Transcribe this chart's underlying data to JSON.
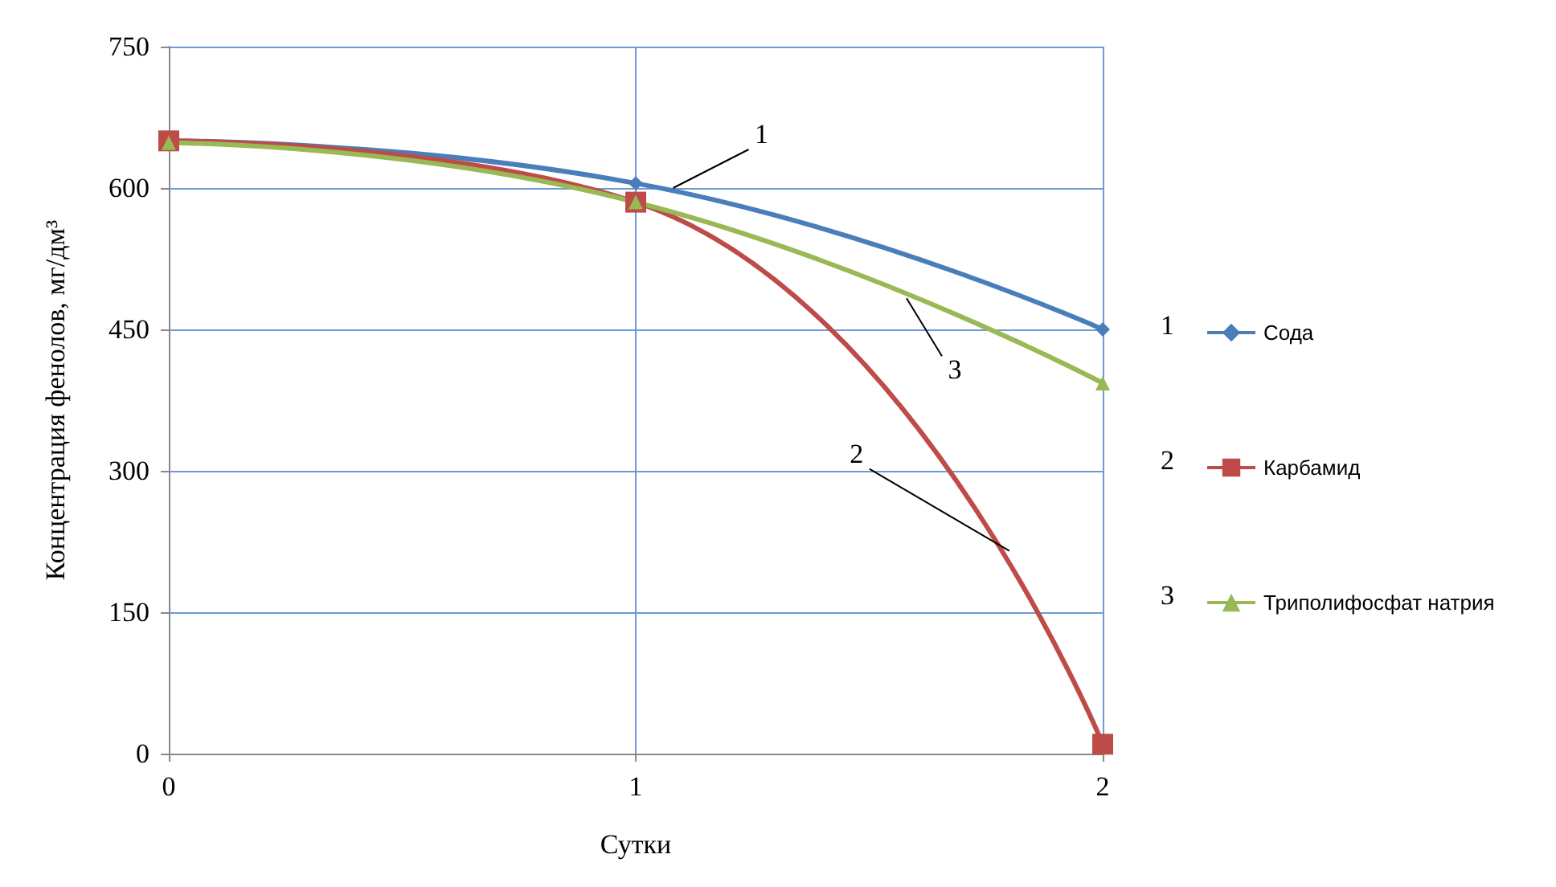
{
  "chart_data": {
    "type": "line",
    "xlabel": "Сутки",
    "ylabel": "Концентрация фенолов, мг/дм³",
    "x": [
      0,
      1,
      2
    ],
    "xlim": [
      0,
      2
    ],
    "xticks": [
      0,
      1,
      2
    ],
    "ylim": [
      0,
      750
    ],
    "yticks": [
      0,
      150,
      300,
      450,
      600,
      750
    ],
    "grid": true,
    "legend": "right",
    "series": [
      {
        "name": "Сода",
        "color": "#4a7ebb",
        "marker": "diamond",
        "values": [
          650,
          605,
          450
        ]
      },
      {
        "name": "Карбамид",
        "color": "#be4b48",
        "marker": "square",
        "values": [
          650,
          585,
          10
        ]
      },
      {
        "name": "Триполифосфат натрия",
        "color": "#98b954",
        "marker": "triangle",
        "values": [
          648,
          585,
          393
        ]
      }
    ],
    "annotations": [
      {
        "text": "1",
        "x": 1.08,
        "y": 600
      },
      {
        "text": "2",
        "x": 1.8,
        "y": 215
      },
      {
        "text": "3",
        "x": 1.58,
        "y": 483
      },
      "1",
      "2",
      "3"
    ]
  }
}
